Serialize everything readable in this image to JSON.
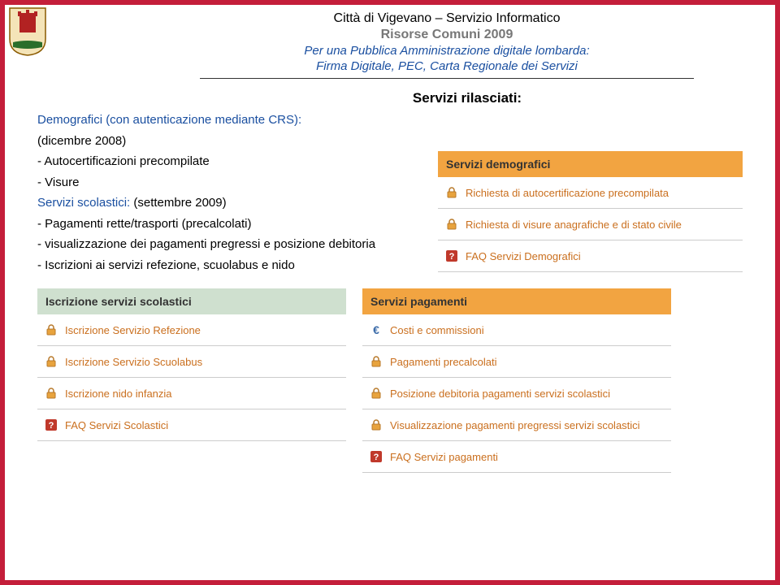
{
  "header": {
    "line1": "Città di Vigevano – Servizio Informatico",
    "line2": "Risorse Comuni 2009",
    "line3": "Per una Pubblica Amministrazione digitale lombarda:",
    "line4": "Firma Digitale, PEC, Carta Regionale dei Servizi"
  },
  "section_title": "Servizi rilasciati:",
  "body": {
    "demografici_label": "Demografici (con autenticazione mediante CRS):",
    "demografici_date": "(dicembre 2008)",
    "item1": "- Autocertificazioni precompilate",
    "item2": "- Visure",
    "scolastici_label": "Servizi scolastici:",
    "scolastici_date": "(settembre 2009)",
    "item3": "- Pagamenti rette/trasporti (precalcolati)",
    "item4": "- visualizzazione dei pagamenti pregressi e posizione debitoria",
    "item5": "- Iscrizioni ai servizi refezione, scuolabus e nido"
  },
  "box_demografici": {
    "header": "Servizi demografici",
    "items": [
      {
        "icon": "lock",
        "label": "Richiesta di autocertificazione precompilata"
      },
      {
        "icon": "lock",
        "label": "Richiesta di visure anagrafiche e di stato civile"
      },
      {
        "icon": "faq",
        "label": "FAQ Servizi Demografici"
      }
    ]
  },
  "box_iscrizione": {
    "header": "Iscrizione servizi scolastici",
    "items": [
      {
        "icon": "lock",
        "label": "Iscrizione Servizio Refezione"
      },
      {
        "icon": "lock",
        "label": "Iscrizione Servizio Scuolabus"
      },
      {
        "icon": "lock",
        "label": "Iscrizione nido infanzia"
      },
      {
        "icon": "faq",
        "label": "FAQ Servizi Scolastici"
      }
    ]
  },
  "box_pagamenti": {
    "header": "Servizi pagamenti",
    "items": [
      {
        "icon": "euro",
        "label": "Costi e commissioni"
      },
      {
        "icon": "lock",
        "label": "Pagamenti precalcolati"
      },
      {
        "icon": "lock",
        "label": "Posizione debitoria pagamenti servizi scolastici"
      },
      {
        "icon": "lock",
        "label": "Visualizzazione pagamenti pregressi servizi scolastici"
      },
      {
        "icon": "faq",
        "label": "FAQ Servizi pagamenti"
      }
    ]
  },
  "colors": {
    "border": "#c41e3a",
    "blue": "#1a4fa0",
    "green_header": "#cfe0cf",
    "orange_header": "#f2a441",
    "link_orange": "#ca6f1e",
    "divider": "#cccccc"
  }
}
